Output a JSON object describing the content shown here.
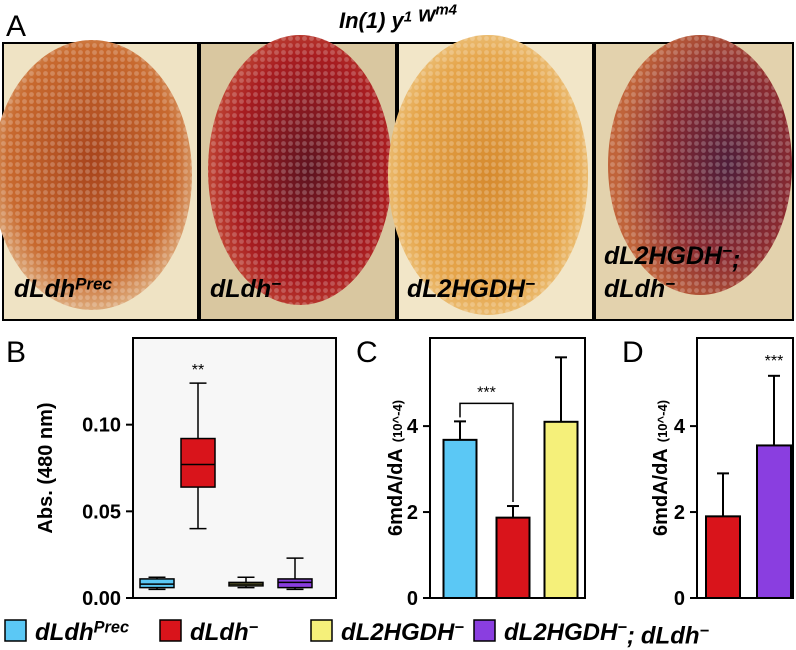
{
  "panel_a": {
    "label": "A",
    "title_parts": [
      {
        "base": "In(1) y",
        "sup": "1"
      },
      {
        "base": " w",
        "sup": "m4"
      }
    ]
  },
  "genotypes": [
    {
      "color": "#5bc8f5",
      "parts": [
        {
          "base": "dLdh",
          "sup": "Prec"
        }
      ]
    },
    {
      "color": "#d9141b",
      "parts": [
        {
          "base": "dLdh",
          "sup": "−"
        }
      ]
    },
    {
      "color": "#f5f07a",
      "parts": [
        {
          "base": "dL2HGDH",
          "sup": "−"
        }
      ]
    },
    {
      "color": "#8a3ee0",
      "parts": [
        {
          "base": "dL2HGDH",
          "sup": "−",
          "after": ";"
        },
        {
          "base": "dLdh",
          "sup": "−"
        }
      ]
    }
  ],
  "chart_data": [
    {
      "type": "box",
      "panel": "B",
      "ylabel": "Abs. (480 nm)",
      "ylim": [
        0,
        0.15
      ],
      "yticks": [
        {
          "value": 0,
          "label": "0.00"
        },
        {
          "value": 0.05,
          "label": "0.05"
        },
        {
          "value": 0.1,
          "label": "0.10"
        }
      ],
      "colors": [
        "#5bc8f5",
        "#d9141b",
        "#f5f07a",
        "#8a3ee0"
      ],
      "boxes": [
        {
          "low": 0.005,
          "q1": 0.006,
          "median": 0.008,
          "q3": 0.011,
          "high": 0.012
        },
        {
          "low": 0.04,
          "q1": 0.064,
          "median": 0.077,
          "q3": 0.092,
          "high": 0.124
        },
        {
          "low": 0.006,
          "q1": 0.007,
          "median": 0.008,
          "q3": 0.009,
          "high": 0.012
        },
        {
          "low": 0.005,
          "q1": 0.006,
          "median": 0.009,
          "q3": 0.011,
          "high": 0.023
        }
      ],
      "annotations": [
        null,
        "**",
        null,
        null
      ]
    },
    {
      "type": "bar",
      "panel": "C",
      "ylabel": "6mdA/dA",
      "ylabel_unit": "(10^-4)",
      "ylim": [
        0,
        6.05
      ],
      "yticks": [
        0,
        2,
        4
      ],
      "colors": [
        "#5bc8f5",
        "#d9141b",
        "#f5f07a"
      ],
      "values": [
        3.68,
        1.87,
        4.1
      ],
      "errors": [
        0.43,
        0.27,
        1.5
      ],
      "annotations": [
        null,
        "***",
        null
      ],
      "bracket": true
    },
    {
      "type": "bar",
      "panel": "D",
      "ylabel": "6mdA/dA",
      "ylabel_unit": "(10^-4)",
      "ylim": [
        0,
        6.05
      ],
      "yticks": [
        0,
        2,
        4
      ],
      "colors": [
        "#d9141b",
        "#8a3ee0"
      ],
      "values": [
        1.9,
        3.55
      ],
      "errors": [
        1.0,
        1.62
      ],
      "annotations": [
        null,
        "***"
      ],
      "bracket": false
    }
  ]
}
